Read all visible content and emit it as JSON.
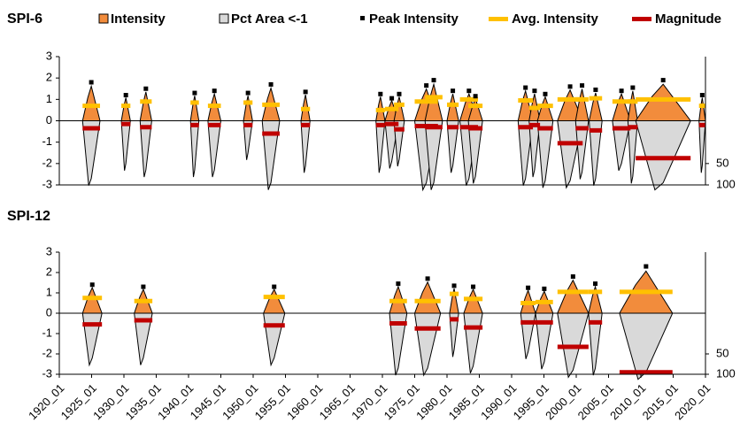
{
  "legend": [
    {
      "name": "Intensity",
      "color": "#f28c3c"
    },
    {
      "name": "Pct Area <-1",
      "color": "#d9d9d9"
    },
    {
      "name": "Peak Intensity",
      "color": "#000000"
    },
    {
      "name": "Avg. Intensity",
      "color": "#ffc000"
    },
    {
      "name": "Magnitude",
      "color": "#c00000"
    }
  ],
  "chart_data": [
    {
      "type": "drought_events",
      "title": "SPI-6",
      "xlim": [
        1920,
        2020
      ],
      "ylim": [
        -3,
        3
      ],
      "yticks": [
        -3,
        -2,
        -1,
        0,
        1,
        2,
        3
      ],
      "y2lim": [
        100,
        -200
      ],
      "y2ticks": [
        50,
        100
      ],
      "events": [
        {
          "start": 1923.6,
          "end": 1926.3,
          "peak": 1.8,
          "avg": 0.7,
          "magnitude": -0.35,
          "area": 85
        },
        {
          "start": 1929.6,
          "end": 1931.0,
          "peak": 1.2,
          "avg": 0.7,
          "magnitude": -0.15,
          "area": 50
        },
        {
          "start": 1932.5,
          "end": 1934.3,
          "peak": 1.5,
          "avg": 0.9,
          "magnitude": -0.3,
          "area": 65
        },
        {
          "start": 1940.3,
          "end": 1941.6,
          "peak": 1.3,
          "avg": 0.85,
          "magnitude": -0.2,
          "area": 65
        },
        {
          "start": 1943.0,
          "end": 1945.0,
          "peak": 1.4,
          "avg": 0.7,
          "magnitude": -0.2,
          "area": 65
        },
        {
          "start": 1948.5,
          "end": 1949.9,
          "peak": 1.3,
          "avg": 0.85,
          "magnitude": -0.2,
          "area": 25
        },
        {
          "start": 1951.4,
          "end": 1954.1,
          "peak": 1.7,
          "avg": 0.75,
          "magnitude": -0.6,
          "area": 95
        },
        {
          "start": 1957.4,
          "end": 1958.8,
          "peak": 1.35,
          "avg": 0.55,
          "magnitude": -0.2,
          "area": 55
        },
        {
          "start": 1969.0,
          "end": 1970.4,
          "peak": 1.25,
          "avg": 0.5,
          "magnitude": -0.2,
          "area": 55
        },
        {
          "start": 1970.4,
          "end": 1972.5,
          "peak": 1.05,
          "avg": 0.55,
          "magnitude": -0.15,
          "area": 45
        },
        {
          "start": 1971.8,
          "end": 1973.4,
          "peak": 1.25,
          "avg": 0.75,
          "magnitude": -0.4,
          "area": 40
        },
        {
          "start": 1975.0,
          "end": 1978.6,
          "peak": 1.65,
          "avg": 0.9,
          "magnitude": -0.25,
          "area": 95
        },
        {
          "start": 1976.6,
          "end": 1979.3,
          "peak": 1.9,
          "avg": 1.1,
          "magnitude": -0.3,
          "area": 95
        },
        {
          "start": 1980.0,
          "end": 1981.8,
          "peak": 1.4,
          "avg": 0.75,
          "magnitude": -0.3,
          "area": 55
        },
        {
          "start": 1982.0,
          "end": 1984.8,
          "peak": 1.4,
          "avg": 1.0,
          "magnitude": -0.3,
          "area": 85
        },
        {
          "start": 1983.3,
          "end": 1985.5,
          "peak": 1.15,
          "avg": 0.7,
          "magnitude": -0.35,
          "area": 80
        },
        {
          "start": 1991.0,
          "end": 1993.3,
          "peak": 1.55,
          "avg": 0.95,
          "magnitude": -0.3,
          "area": 85
        },
        {
          "start": 1992.7,
          "end": 1994.4,
          "peak": 1.4,
          "avg": 0.6,
          "magnitude": -0.2,
          "area": 65
        },
        {
          "start": 1994.0,
          "end": 1996.4,
          "peak": 1.25,
          "avg": 0.7,
          "magnitude": -0.35,
          "area": 90
        },
        {
          "start": 1997.1,
          "end": 2001.0,
          "peak": 1.6,
          "avg": 1.0,
          "magnitude": -1.05,
          "area": 90
        },
        {
          "start": 1999.9,
          "end": 2001.9,
          "peak": 1.65,
          "avg": 1.0,
          "magnitude": -0.35,
          "area": 70
        },
        {
          "start": 2002.0,
          "end": 2004.0,
          "peak": 1.45,
          "avg": 1.05,
          "magnitude": -0.45,
          "area": 85
        },
        {
          "start": 2005.6,
          "end": 2008.4,
          "peak": 1.4,
          "avg": 0.9,
          "magnitude": -0.35,
          "area": 50
        },
        {
          "start": 2008.0,
          "end": 2009.5,
          "peak": 1.55,
          "avg": 0.9,
          "magnitude": -0.3,
          "area": 80
        },
        {
          "start": 2009.2,
          "end": 2017.7,
          "peak": 1.9,
          "avg": 1.0,
          "magnitude": -1.75,
          "area": 95
        },
        {
          "start": 2019.0,
          "end": 2020.0,
          "peak": 1.2,
          "avg": 0.7,
          "magnitude": -0.2,
          "area": 55
        }
      ]
    },
    {
      "type": "drought_events",
      "title": "SPI-12",
      "xlim": [
        1920,
        2020
      ],
      "ylim": [
        -3,
        3
      ],
      "yticks": [
        -3,
        -2,
        -1,
        0,
        1,
        2,
        3
      ],
      "y2lim": [
        100,
        -200
      ],
      "y2ticks": [
        50,
        100
      ],
      "xticks": [
        {
          "value": 1920,
          "label": "1920_01"
        },
        {
          "value": 1925,
          "label": "1925_01"
        },
        {
          "value": 1930,
          "label": "1930_01"
        },
        {
          "value": 1935,
          "label": "1935_01"
        },
        {
          "value": 1940,
          "label": "1940_01"
        },
        {
          "value": 1945,
          "label": "1945_01"
        },
        {
          "value": 1950,
          "label": "1950_01"
        },
        {
          "value": 1955,
          "label": "1955_01"
        },
        {
          "value": 1960,
          "label": "1960_01"
        },
        {
          "value": 1965,
          "label": "1965_01"
        },
        {
          "value": 1970,
          "label": "1970_01"
        },
        {
          "value": 1975,
          "label": "1975_01"
        },
        {
          "value": 1980,
          "label": "1980_01"
        },
        {
          "value": 1985,
          "label": "1985_01"
        },
        {
          "value": 1990,
          "label": "1990_01"
        },
        {
          "value": 1995,
          "label": "1995_01"
        },
        {
          "value": 2000,
          "label": "2000_01"
        },
        {
          "value": 2005,
          "label": "2005_01"
        },
        {
          "value": 2010,
          "label": "2010_01"
        },
        {
          "value": 2015,
          "label": "2015_01"
        },
        {
          "value": 2020,
          "label": "2020_01"
        }
      ],
      "events": [
        {
          "start": 1923.6,
          "end": 1926.6,
          "peak": 1.4,
          "avg": 0.75,
          "magnitude": -0.55,
          "area": 60
        },
        {
          "start": 1931.6,
          "end": 1934.4,
          "peak": 1.3,
          "avg": 0.6,
          "magnitude": -0.35,
          "area": 60
        },
        {
          "start": 1951.6,
          "end": 1954.9,
          "peak": 1.3,
          "avg": 0.8,
          "magnitude": -0.6,
          "area": 60
        },
        {
          "start": 1971.1,
          "end": 1973.8,
          "peak": 1.45,
          "avg": 0.6,
          "magnitude": -0.5,
          "area": 85
        },
        {
          "start": 1975.0,
          "end": 1979.0,
          "peak": 1.7,
          "avg": 0.6,
          "magnitude": -0.75,
          "area": 85
        },
        {
          "start": 1980.4,
          "end": 1981.8,
          "peak": 1.35,
          "avg": 0.95,
          "magnitude": -0.3,
          "area": 40
        },
        {
          "start": 1982.6,
          "end": 1985.5,
          "peak": 1.3,
          "avg": 0.7,
          "magnitude": -0.7,
          "area": 80
        },
        {
          "start": 1991.4,
          "end": 1993.7,
          "peak": 1.25,
          "avg": 0.5,
          "magnitude": -0.45,
          "area": 45
        },
        {
          "start": 1993.7,
          "end": 1996.4,
          "peak": 1.2,
          "avg": 0.55,
          "magnitude": -0.45,
          "area": 70
        },
        {
          "start": 1997.1,
          "end": 2001.9,
          "peak": 1.8,
          "avg": 1.05,
          "magnitude": -1.65,
          "area": 90
        },
        {
          "start": 2001.9,
          "end": 2004.0,
          "peak": 1.45,
          "avg": 1.05,
          "magnitude": -0.45,
          "area": 85
        },
        {
          "start": 2006.7,
          "end": 2014.9,
          "peak": 2.3,
          "avg": 1.05,
          "magnitude": -2.9,
          "area": 95
        }
      ]
    }
  ]
}
